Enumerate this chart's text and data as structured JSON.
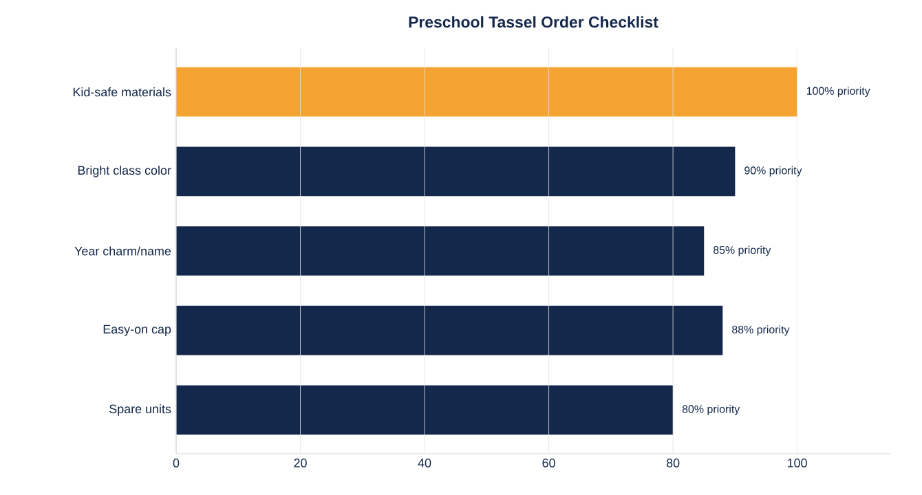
{
  "chart_data": {
    "type": "bar",
    "orientation": "horizontal",
    "title": "Preschool Tassel Order Checklist",
    "categories": [
      "Kid-safe materials",
      "Bright class color",
      "Year charm/name",
      "Easy-on cap",
      "Spare units"
    ],
    "values": [
      100,
      90,
      85,
      88,
      80
    ],
    "colors": [
      "#f5a431",
      "#14284b",
      "#14284b",
      "#14284b",
      "#14284b"
    ],
    "value_labels": [
      "100% priority",
      "90% priority",
      "85% priority",
      "88% priority",
      "80% priority"
    ],
    "xlim": [
      0,
      115
    ],
    "xticks": [
      0,
      20,
      40,
      60,
      80,
      100
    ],
    "grid": "x"
  }
}
